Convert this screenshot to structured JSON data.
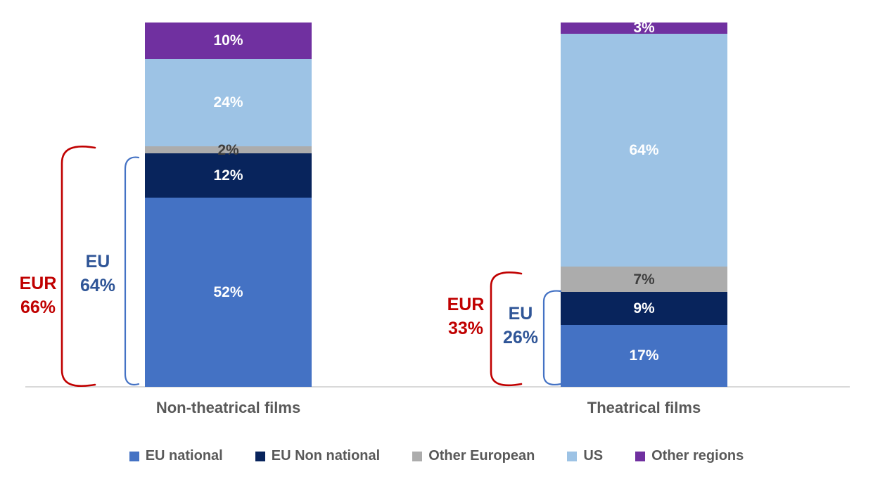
{
  "colors": {
    "background": "#ffffff",
    "axis_line": "#d9d9d9",
    "eur_bracket": "#c00000",
    "eu_bracket": "#4472c4",
    "eur_text": "#c00000",
    "eu_text": "#2f5597",
    "category_text": "#595959",
    "legend_text": "#595959"
  },
  "chart_data": {
    "type": "bar",
    "subtype": "stacked-percent",
    "title": "",
    "xlabel": "",
    "ylabel": "",
    "ylim": [
      0,
      100
    ],
    "value_suffix": "%",
    "grid": false,
    "legend_position": "bottom",
    "categories": [
      "Non-theatrical films",
      "Theatrical films"
    ],
    "series": [
      {
        "name": "EU national",
        "color": "#4472c4",
        "label_color": "#ffffff",
        "values": [
          52,
          17
        ]
      },
      {
        "name": "EU Non national",
        "color": "#08245c",
        "label_color": "#ffffff",
        "values": [
          12,
          9
        ]
      },
      {
        "name": "Other European",
        "color": "#acacac",
        "label_color": "#3f3f3f",
        "values": [
          2,
          7
        ]
      },
      {
        "name": "US",
        "color": "#9dc3e5",
        "label_color": "#ffffff",
        "values": [
          24,
          64
        ]
      },
      {
        "name": "Other regions",
        "color": "#7030a0",
        "label_color": "#ffffff",
        "values": [
          10,
          3
        ]
      }
    ],
    "annotations": {
      "eur_left": {
        "label": "EUR",
        "value": "66%"
      },
      "eu_left": {
        "label": "EU",
        "value": "64%"
      },
      "eur_right": {
        "label": "EUR",
        "value": "33%"
      },
      "eu_right": {
        "label": "EU",
        "value": "26%"
      }
    }
  }
}
